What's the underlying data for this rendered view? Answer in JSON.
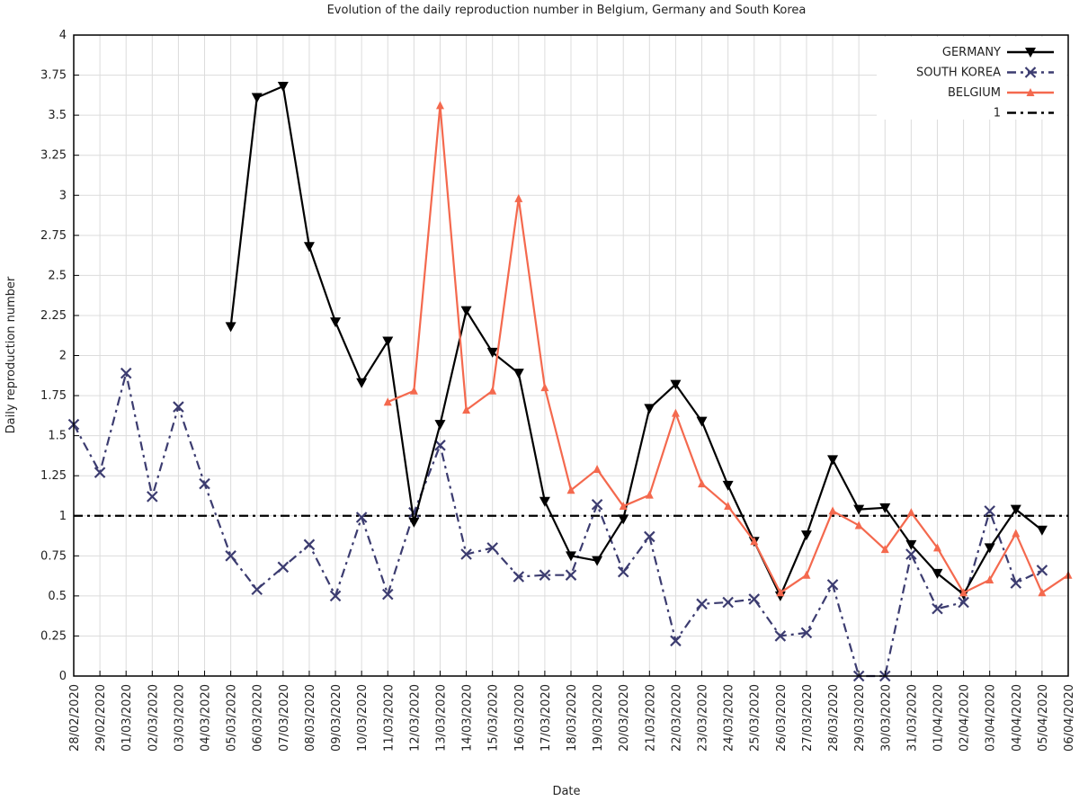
{
  "chart_data": {
    "type": "line",
    "title": "Evolution of the daily reproduction number in  Belgium, Germany and South Korea",
    "xlabel": "Date",
    "ylabel": "Daily reproduction number",
    "ylim": [
      0,
      4
    ],
    "yticks": [
      "0",
      "0.25",
      "0.5",
      "0.75",
      "1",
      "1.25",
      "1.5",
      "1.75",
      "2",
      "2.25",
      "2.5",
      "2.75",
      "3",
      "3.25",
      "3.5",
      "3.75",
      "4"
    ],
    "grid": true,
    "legend_position": "top-right",
    "categories": [
      "28/02/2020",
      "29/02/2020",
      "01/03/2020",
      "02/03/2020",
      "03/03/2020",
      "04/03/2020",
      "05/03/2020",
      "06/03/2020",
      "07/03/2020",
      "08/03/2020",
      "09/03/2020",
      "10/03/2020",
      "11/03/2020",
      "12/03/2020",
      "13/03/2020",
      "14/03/2020",
      "15/03/2020",
      "16/03/2020",
      "17/03/2020",
      "18/03/2020",
      "19/03/2020",
      "20/03/2020",
      "21/03/2020",
      "22/03/2020",
      "23/03/2020",
      "24/03/2020",
      "25/03/2020",
      "26/03/2020",
      "27/03/2020",
      "28/03/2020",
      "29/03/2020",
      "30/03/2020",
      "31/03/2020",
      "01/04/2020",
      "02/04/2020",
      "03/04/2020",
      "04/04/2020",
      "05/04/2020",
      "06/04/2020"
    ],
    "series": [
      {
        "name": "GERMANY",
        "color": "#000000",
        "marker": "triangle-down",
        "dash": "solid",
        "values": [
          null,
          null,
          null,
          null,
          null,
          null,
          2.18,
          3.61,
          3.68,
          2.68,
          2.21,
          1.83,
          2.09,
          0.96,
          1.57,
          2.28,
          2.02,
          1.89,
          1.09,
          0.75,
          0.72,
          0.98,
          1.67,
          1.82,
          1.59,
          1.19,
          0.84,
          0.5,
          0.88,
          1.35,
          1.04,
          1.05,
          0.82,
          0.64,
          0.51,
          0.8,
          1.04,
          0.91,
          null
        ]
      },
      {
        "name": "SOUTH KOREA",
        "color": "#3c3c70",
        "marker": "x",
        "dash": "dashdot",
        "values": [
          1.57,
          1.27,
          1.89,
          1.12,
          1.68,
          1.2,
          0.75,
          0.54,
          0.68,
          0.82,
          0.5,
          0.99,
          0.51,
          1.02,
          1.44,
          0.76,
          0.8,
          0.62,
          0.63,
          0.63,
          1.07,
          0.65,
          0.87,
          0.22,
          0.45,
          0.46,
          0.48,
          0.25,
          0.27,
          0.57,
          0.0,
          0.0,
          0.76,
          0.42,
          0.46,
          1.03,
          0.58,
          0.66,
          null
        ]
      },
      {
        "name": "BELGIUM",
        "color": "#f4694e",
        "marker": "triangle-up",
        "dash": "solid",
        "values": [
          null,
          null,
          null,
          null,
          null,
          null,
          null,
          null,
          null,
          null,
          null,
          null,
          1.71,
          1.78,
          3.56,
          1.66,
          1.78,
          2.98,
          1.8,
          1.16,
          1.29,
          1.06,
          1.13,
          1.64,
          1.2,
          1.06,
          0.84,
          0.52,
          0.63,
          1.03,
          0.94,
          0.79,
          1.02,
          0.8,
          0.52,
          0.6,
          0.89,
          0.52,
          0.63
        ]
      },
      {
        "name": "1",
        "color": "#000000",
        "marker": "none",
        "dash": "dashdot",
        "constant": 1
      }
    ]
  }
}
